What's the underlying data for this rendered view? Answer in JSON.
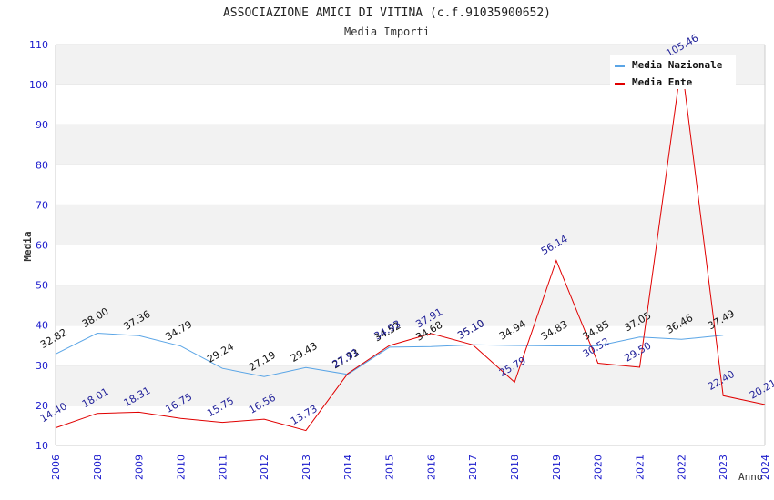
{
  "chart_data": {
    "type": "line",
    "title": "ASSOCIAZIONE AMICI DI VITINA (c.f.91035900652)",
    "subtitle": "Media Importi",
    "xlabel": "Anno",
    "ylabel": "Media",
    "ylim": [
      10,
      110
    ],
    "yticks": [
      "10",
      "20",
      "30",
      "40",
      "50",
      "60",
      "70",
      "80",
      "90",
      "100",
      "110"
    ],
    "ytick_values": [
      10,
      20,
      30,
      40,
      50,
      60,
      70,
      80,
      90,
      100,
      110
    ],
    "grid": true,
    "legend_position": "top-right",
    "categories": [
      "2006",
      "2008",
      "2009",
      "2010",
      "2011",
      "2012",
      "2013",
      "2014",
      "2015",
      "2016",
      "2017",
      "2018",
      "2019",
      "2020",
      "2021",
      "2022",
      "2023",
      "2024"
    ],
    "series": [
      {
        "name": "Media Nazionale",
        "color": "#5aa5e6",
        "values": [
          32.82,
          38.0,
          37.36,
          34.79,
          29.24,
          27.19,
          29.43,
          27.73,
          34.52,
          34.68,
          35.1,
          34.94,
          34.83,
          34.85,
          37.05,
          36.46,
          37.49,
          null
        ],
        "labels": [
          "32.82",
          "38.00",
          "37.36",
          "34.79",
          "29.24",
          "27.19",
          "29.43",
          "27.73",
          "34.52",
          "34.68",
          "35.10",
          "34.94",
          "34.83",
          "34.85",
          "37.05",
          "36.46",
          "37.49",
          ""
        ]
      },
      {
        "name": "Media Ente",
        "color": "#e00000",
        "values": [
          14.4,
          18.01,
          18.31,
          16.75,
          15.75,
          16.56,
          13.73,
          27.91,
          34.93,
          37.91,
          35.1,
          25.79,
          56.14,
          30.52,
          29.5,
          105.46,
          22.4,
          20.21
        ],
        "labels": [
          "14.40",
          "18.01",
          "18.31",
          "16.75",
          "15.75",
          "16.56",
          "13.73",
          "27.91",
          "34.93",
          "37.91",
          "35.10",
          "25.79",
          "56.14",
          "30.52",
          "29.50",
          "105.46",
          "22.40",
          "20.21"
        ]
      }
    ]
  }
}
